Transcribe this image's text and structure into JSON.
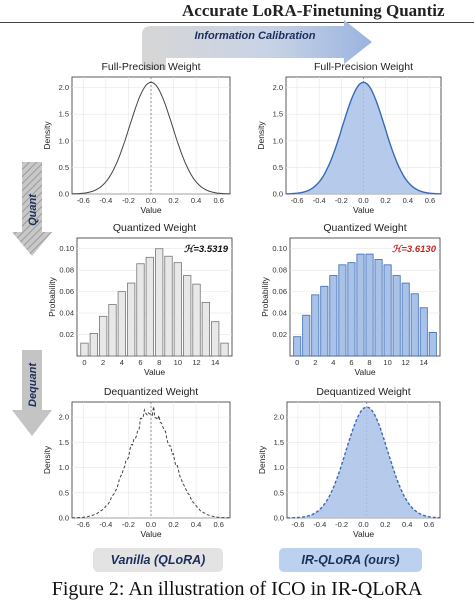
{
  "header": {
    "title": "Accurate LoRA-Finetuning Quantiz"
  },
  "top_arrow_label": "Information Calibration",
  "side_arrows": {
    "quant": "Quant",
    "dequant": "Dequant"
  },
  "entropy": {
    "left": "ℋ=3.5319",
    "right": "ℋ=3.6130"
  },
  "badges": {
    "left": "Vanilla (QLoRA)",
    "right": "IR-QLoRA (ours)"
  },
  "caption": "Figure 2: An illustration of ICO in IR-QLoRA",
  "colors": {
    "blue_line": "#3a6ab5",
    "blue_fill": "#a9c2e8",
    "gray_fill": "#e8e8e8",
    "gray_line": "#444444"
  },
  "chart_data": [
    {
      "type": "line",
      "panel": "full-precision-left",
      "title": "Full-Precision Weight",
      "xlabel": "Value",
      "ylabel": "Density",
      "xlim": [
        -0.7,
        0.7
      ],
      "ylim": [
        0,
        2.2
      ],
      "xticks": [
        "-0.6",
        "-0.4",
        "-0.2",
        "0.0",
        "0.2",
        "0.4",
        "0.6"
      ],
      "yticks": [
        "0.0",
        "0.5",
        "1.0",
        "1.5",
        "2.0"
      ],
      "distribution": {
        "kind": "normal",
        "mean": 0.0,
        "peak": 2.1,
        "sd": 0.19
      },
      "filled": false
    },
    {
      "type": "area",
      "panel": "full-precision-right",
      "title": "Full-Precision Weight",
      "xlabel": "Value",
      "ylabel": "Density",
      "xlim": [
        -0.7,
        0.7
      ],
      "ylim": [
        0,
        2.2
      ],
      "xticks": [
        "-0.6",
        "-0.4",
        "-0.2",
        "0.0",
        "0.2",
        "0.4",
        "0.6"
      ],
      "yticks": [
        "0.0",
        "0.5",
        "1.0",
        "1.5",
        "2.0"
      ],
      "distribution": {
        "kind": "normal",
        "mean": 0.0,
        "peak": 2.1,
        "sd": 0.19
      },
      "filled": true
    },
    {
      "type": "bar",
      "panel": "quantized-left",
      "title": "Quantized Weight",
      "xlabel": "Value",
      "ylabel": "Probability",
      "categories": [
        0,
        1,
        2,
        3,
        4,
        5,
        6,
        7,
        8,
        9,
        10,
        11,
        12,
        13,
        14,
        15
      ],
      "xticks": [
        "0",
        "2",
        "4",
        "6",
        "8",
        "10",
        "12",
        "14"
      ],
      "yticks": [
        "0.02",
        "0.04",
        "0.06",
        "0.08",
        "0.10"
      ],
      "ylim": [
        0,
        0.11
      ],
      "values": [
        0.012,
        0.021,
        0.037,
        0.048,
        0.06,
        0.068,
        0.086,
        0.092,
        0.1,
        0.093,
        0.087,
        0.075,
        0.067,
        0.05,
        0.032,
        0.012
      ]
    },
    {
      "type": "bar",
      "panel": "quantized-right",
      "title": "Quantized Weight",
      "xlabel": "Value",
      "ylabel": "Probability",
      "categories": [
        0,
        1,
        2,
        3,
        4,
        5,
        6,
        7,
        8,
        9,
        10,
        11,
        12,
        13,
        14,
        15
      ],
      "xticks": [
        "0",
        "2",
        "4",
        "6",
        "8",
        "10",
        "12",
        "14"
      ],
      "yticks": [
        "0.02",
        "0.04",
        "0.06",
        "0.08",
        "0.10"
      ],
      "ylim": [
        0,
        0.11
      ],
      "values": [
        0.018,
        0.038,
        0.057,
        0.065,
        0.075,
        0.085,
        0.087,
        0.095,
        0.095,
        0.09,
        0.085,
        0.075,
        0.068,
        0.058,
        0.045,
        0.022
      ]
    },
    {
      "type": "line",
      "panel": "dequantized-left",
      "title": "Dequantized Weight",
      "xlabel": "Value",
      "ylabel": "Density",
      "xlim": [
        -0.7,
        0.7
      ],
      "ylim": [
        0,
        2.3
      ],
      "xticks": [
        "-0.6",
        "-0.4",
        "-0.2",
        "0.0",
        "0.2",
        "0.4",
        "0.6"
      ],
      "yticks": [
        "0.0",
        "0.5",
        "1.0",
        "1.5",
        "2.0"
      ],
      "distribution": {
        "kind": "normal-jagged",
        "mean": 0.0,
        "peak": 2.15,
        "sd": 0.19
      },
      "filled": false
    },
    {
      "type": "area",
      "panel": "dequantized-right",
      "title": "Dequantized Weight",
      "xlabel": "Value",
      "ylabel": "Density",
      "xlim": [
        -0.7,
        0.7
      ],
      "ylim": [
        0,
        2.3
      ],
      "xticks": [
        "-0.6",
        "-0.4",
        "-0.2",
        "0.0",
        "0.2",
        "0.4",
        "0.6"
      ],
      "yticks": [
        "0.0",
        "0.5",
        "1.0",
        "1.5",
        "2.0"
      ],
      "distribution": {
        "kind": "normal",
        "mean": 0.03,
        "peak": 2.2,
        "sd": 0.19
      },
      "filled": true
    }
  ]
}
